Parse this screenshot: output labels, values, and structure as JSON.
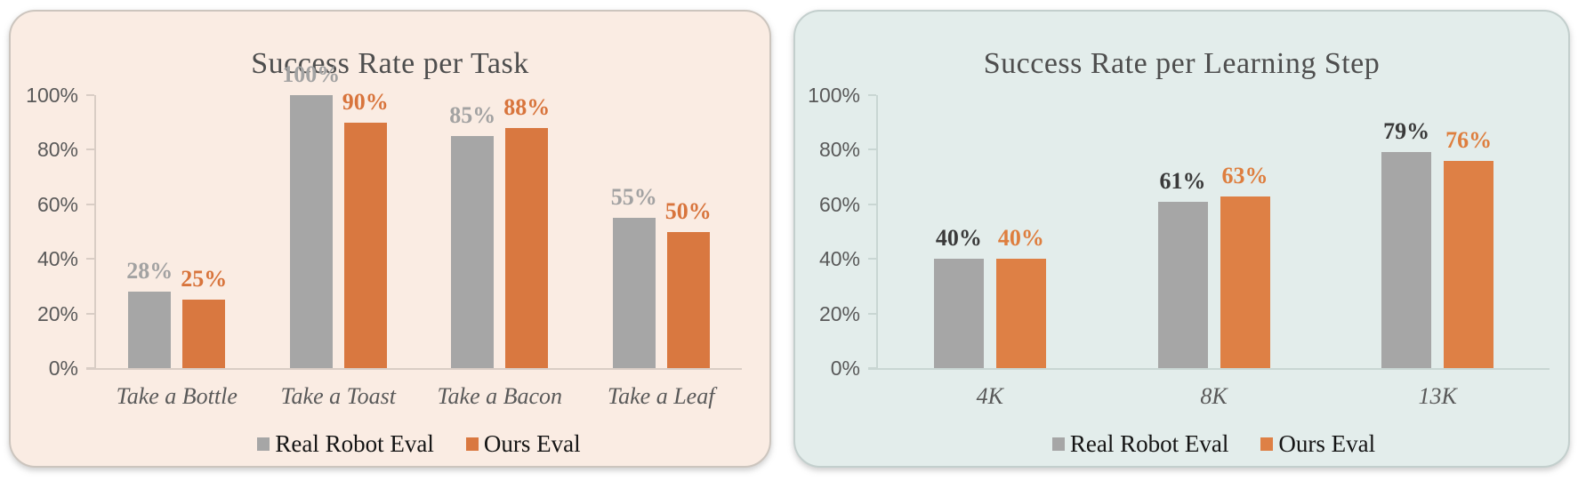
{
  "chart_data": [
    {
      "type": "bar",
      "title": "Success Rate per Task",
      "categories": [
        "Take a Bottle",
        "Take a Toast",
        "Take a Bacon",
        "Take a Leaf"
      ],
      "series": [
        {
          "name": "Real Robot Eval",
          "values": [
            28,
            100,
            85,
            55
          ],
          "color": "#A6A6A6",
          "label_color": "#A2A2A2"
        },
        {
          "name": "Ours Eval",
          "values": [
            25,
            90,
            88,
            50
          ],
          "color": "#D97840",
          "label_color": "#D8743C"
        }
      ],
      "data_labels": [
        [
          "28%",
          "100%",
          "85%",
          "55%"
        ],
        [
          "25%",
          "90%",
          "88%",
          "50%"
        ]
      ],
      "xlabel": "",
      "ylabel": "",
      "ylim": [
        0,
        100
      ],
      "y_tick_labels": [
        "100%",
        "80%",
        "60%",
        "40%",
        "20%",
        "0%"
      ],
      "grid": false,
      "legend_position": "bottom",
      "legend": [
        "Real Robot Eval",
        "Ours Eval"
      ],
      "colors": {
        "panel_bg": "#FAECE3",
        "panel_border": "#CCC5BE",
        "axis": "#D9CDC5",
        "title": "#4E4E4E",
        "tick_label": "#595959",
        "category_label": "#595959",
        "legend_text": "#141414"
      }
    },
    {
      "type": "bar",
      "title": "Success Rate per Learning Step",
      "categories": [
        "4K",
        "8K",
        "13K"
      ],
      "series": [
        {
          "name": "Real Robot Eval",
          "values": [
            40,
            61,
            79
          ],
          "color": "#A6A6A6",
          "label_color": "#3A3A3A"
        },
        {
          "name": "Ours Eval",
          "values": [
            40,
            63,
            76
          ],
          "color": "#DE8045",
          "label_color": "#DE7E3E"
        }
      ],
      "data_labels": [
        [
          "40%",
          "61%",
          "79%"
        ],
        [
          "40%",
          "63%",
          "76%"
        ]
      ],
      "xlabel": "",
      "ylabel": "",
      "ylim": [
        0,
        100
      ],
      "y_tick_labels": [
        "100%",
        "80%",
        "60%",
        "40%",
        "20%",
        "0%"
      ],
      "grid": false,
      "legend_position": "bottom",
      "legend": [
        "Real Robot Eval",
        "Ours Eval"
      ],
      "colors": {
        "panel_bg": "#E3EDEB",
        "panel_border": "#C3CFCD",
        "axis": "#C9D6D3",
        "title": "#4E4E4E",
        "tick_label": "#595959",
        "category_label": "#595959",
        "legend_text": "#141414"
      }
    }
  ]
}
